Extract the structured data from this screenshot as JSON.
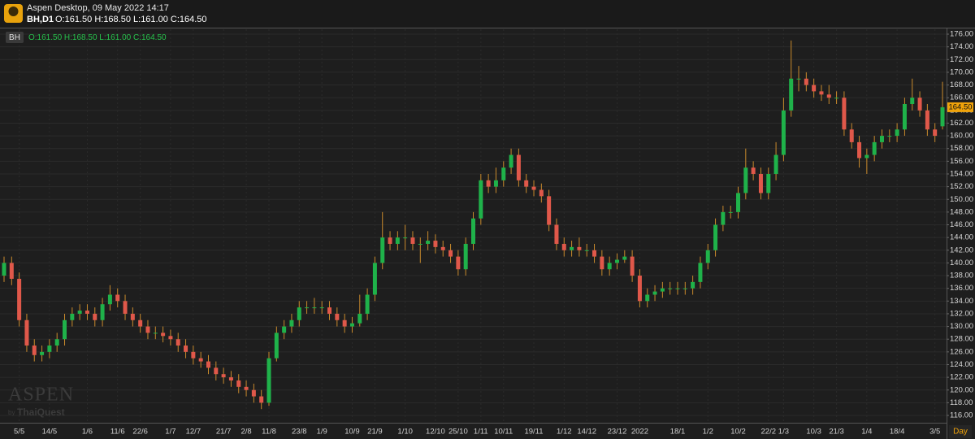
{
  "header": {
    "title": "Aspen Desktop, 09 May 2022 14:17",
    "symbol": "BH,D1",
    "ohlc": "O:161.50 H:168.50 L:161.00 C:164.50"
  },
  "watermark": {
    "brand": "ASPEN",
    "by": "by",
    "company": "ThaiQuest"
  },
  "chart_data": {
    "type": "candlestick",
    "symbol": "BH",
    "ohlc_text": "O:161.50 H:168.50 L:161.00 C:164.50",
    "categories": [
      null,
      null,
      "5/5",
      null,
      null,
      null,
      "14/5",
      null,
      null,
      null,
      null,
      "1/6",
      null,
      null,
      null,
      "11/6",
      null,
      null,
      "22/6",
      null,
      null,
      null,
      "1/7",
      null,
      null,
      "12/7",
      null,
      null,
      null,
      "21/7",
      null,
      null,
      "2/8",
      null,
      null,
      "11/8",
      null,
      null,
      null,
      "23/8",
      null,
      null,
      "1/9",
      null,
      null,
      null,
      "10/9",
      null,
      null,
      "21/9",
      null,
      null,
      null,
      "1/10",
      null,
      null,
      null,
      "12/10",
      null,
      null,
      "25/10",
      null,
      null,
      "1/11",
      null,
      null,
      "10/11",
      null,
      null,
      null,
      "19/11",
      null,
      null,
      null,
      "1/12",
      null,
      null,
      "14/12",
      null,
      null,
      null,
      "23/12",
      null,
      null,
      "2022",
      null,
      null,
      null,
      null,
      "18/1",
      null,
      null,
      null,
      "1/2",
      null,
      null,
      null,
      "10/2",
      null,
      null,
      null,
      "22/2",
      null,
      "1/3",
      null,
      null,
      null,
      "10/3",
      null,
      null,
      "21/3",
      null,
      null,
      null,
      "1/4",
      null,
      null,
      null,
      "18/4",
      null,
      null,
      null,
      null,
      "3/5",
      null
    ],
    "open": [
      138,
      140,
      137.5,
      131,
      127,
      125.5,
      126,
      127,
      128,
      131,
      132,
      132.5,
      132,
      131,
      133.5,
      135,
      134,
      132,
      131,
      130,
      129,
      129,
      128.5,
      128,
      127,
      126,
      125,
      124.5,
      123.5,
      122.5,
      122,
      121.5,
      120.5,
      120,
      119,
      118,
      125,
      129,
      130,
      131,
      133,
      133,
      133,
      133,
      132,
      131,
      130,
      130.5,
      132,
      135,
      140,
      144,
      143,
      144,
      144,
      143,
      143,
      143.5,
      142.5,
      142,
      141,
      139,
      143,
      147,
      153,
      152,
      153,
      155,
      157,
      153,
      152,
      151.5,
      150.5,
      146,
      143,
      142,
      142.5,
      142,
      142,
      141,
      139,
      140,
      140.5,
      141,
      138,
      134,
      135,
      135.5,
      136,
      136,
      136,
      136,
      137,
      140,
      142,
      146,
      148,
      148,
      151,
      155,
      154,
      151,
      154,
      157,
      164,
      169,
      169,
      168,
      167,
      166.5,
      166,
      166,
      161,
      159,
      156.5,
      157,
      159,
      160,
      160,
      161,
      165,
      166,
      164,
      161,
      161.5
    ],
    "high": [
      141,
      141,
      138.5,
      132,
      128,
      127,
      128,
      129,
      132,
      133,
      133.5,
      133.5,
      133,
      134.5,
      136.5,
      136,
      135,
      133,
      132,
      131,
      130,
      130,
      129.5,
      129,
      128,
      127,
      126,
      125.5,
      124.5,
      123.5,
      123,
      122.5,
      121.5,
      121,
      120,
      126,
      130,
      131,
      132,
      134,
      134,
      134.5,
      134,
      134,
      133,
      132,
      131.5,
      135,
      136,
      141,
      148,
      145,
      145,
      146,
      145,
      144,
      145,
      144.5,
      143.5,
      143,
      142,
      144,
      148,
      154,
      154,
      155,
      156,
      158,
      158,
      154,
      153,
      152.5,
      151.5,
      147,
      144,
      143.5,
      144,
      143,
      143,
      142,
      141,
      141.5,
      142,
      142,
      139,
      136,
      136.5,
      137,
      137,
      137,
      137,
      138,
      141,
      143,
      147,
      149,
      149,
      152,
      158,
      156,
      155,
      155,
      159,
      166,
      175,
      171,
      170,
      169,
      168,
      168,
      167,
      167,
      162,
      160,
      158,
      160,
      161,
      161,
      162,
      166,
      169,
      167,
      165,
      162,
      168.5
    ],
    "low": [
      137,
      136.5,
      130,
      126,
      124.5,
      124.5,
      125,
      126,
      127,
      130,
      131,
      131,
      130,
      130,
      132.5,
      133,
      131,
      130,
      129,
      128,
      128,
      127.5,
      127,
      126,
      125,
      124,
      123.5,
      122.5,
      121.5,
      121,
      120.5,
      119.5,
      119,
      118,
      117,
      117.5,
      124.5,
      128,
      129,
      130,
      132,
      132,
      132,
      131,
      130,
      129,
      129,
      130,
      131,
      134,
      139,
      142,
      142,
      142,
      142,
      140,
      142,
      141.5,
      141,
      140,
      138,
      138,
      142,
      146,
      151,
      151,
      152,
      154,
      152,
      151,
      150.5,
      149.5,
      145,
      142,
      141,
      141,
      141,
      141,
      140,
      138,
      138,
      139,
      140,
      137,
      133,
      133,
      134,
      134.5,
      135,
      135,
      135,
      135,
      136,
      139,
      141,
      145,
      147,
      147,
      150,
      153,
      150,
      150,
      153,
      156,
      163,
      167,
      167,
      166,
      165.5,
      165,
      165,
      160,
      158,
      155,
      154,
      156,
      158,
      159,
      159,
      160,
      164,
      163,
      160,
      159,
      161
    ],
    "close": [
      140,
      137.5,
      131,
      127,
      125.5,
      126,
      127,
      128,
      131,
      132,
      132.5,
      132,
      131,
      133.5,
      135,
      134,
      132,
      131,
      130,
      129,
      129,
      128.5,
      128,
      127,
      126,
      125,
      124.5,
      123.5,
      122.5,
      122,
      121.5,
      120.5,
      120,
      119,
      118,
      125,
      129,
      130,
      131,
      133,
      133,
      133,
      133,
      132,
      131,
      130,
      130.5,
      132,
      135,
      140,
      144,
      143,
      144,
      144,
      143,
      143,
      143.5,
      142.5,
      142,
      141,
      139,
      143,
      147,
      153,
      152,
      153,
      155,
      157,
      153,
      152,
      151.5,
      150.5,
      146,
      143,
      142,
      142.5,
      142,
      142,
      141,
      139,
      140,
      140.5,
      141,
      138,
      134,
      135,
      135.5,
      136,
      136,
      136,
      136,
      137,
      140,
      142,
      146,
      148,
      148,
      151,
      155,
      154,
      151,
      154,
      157,
      164,
      169,
      169,
      168,
      167,
      166.5,
      166,
      166,
      161,
      159,
      156.5,
      157,
      159,
      160,
      160,
      161,
      165,
      166,
      164,
      161,
      160,
      164.5
    ],
    "up_color": "#1fb24a",
    "down_color": "#e0584a",
    "wick_color": "#c98a2c",
    "ylim": [
      114.85,
      176.77
    ],
    "yticks": [
      {
        "value": 116,
        "label": "116.00"
      },
      {
        "value": 118,
        "label": "118.00"
      },
      {
        "value": 120,
        "label": "120.00"
      },
      {
        "value": 122,
        "label": "122.00"
      },
      {
        "value": 124,
        "label": "124.00"
      },
      {
        "value": 126,
        "label": "126.00"
      },
      {
        "value": 128,
        "label": "128.00"
      },
      {
        "value": 130,
        "label": "130.00"
      },
      {
        "value": 132,
        "label": "132.00"
      },
      {
        "value": 134,
        "label": "134.00"
      },
      {
        "value": 136,
        "label": "136.00"
      },
      {
        "value": 138,
        "label": "138.00"
      },
      {
        "value": 140,
        "label": "140.00"
      },
      {
        "value": 142,
        "label": "142.00"
      },
      {
        "value": 144,
        "label": "144.00"
      },
      {
        "value": 146,
        "label": "146.00"
      },
      {
        "value": 148,
        "label": "148.00"
      },
      {
        "value": 150,
        "label": "150.00"
      },
      {
        "value": 152,
        "label": "152.00"
      },
      {
        "value": 154,
        "label": "154.00"
      },
      {
        "value": 156,
        "label": "156.00"
      },
      {
        "value": 158,
        "label": "158.00"
      },
      {
        "value": 160,
        "label": "160.00"
      },
      {
        "value": 162,
        "label": "162.00"
      },
      {
        "value": 164,
        "label": "164.00"
      },
      {
        "value": 166,
        "label": "166.00"
      },
      {
        "value": 168,
        "label": "168.00"
      },
      {
        "value": 170,
        "label": "170.00"
      },
      {
        "value": 172,
        "label": "172.00"
      },
      {
        "value": 174,
        "label": "174.00"
      },
      {
        "value": 176,
        "label": "176.00"
      }
    ],
    "last_price": {
      "value": 164.5,
      "label": "164.50"
    },
    "last_price_color": "#f0a30a",
    "period_label": "Day",
    "grid": true
  }
}
